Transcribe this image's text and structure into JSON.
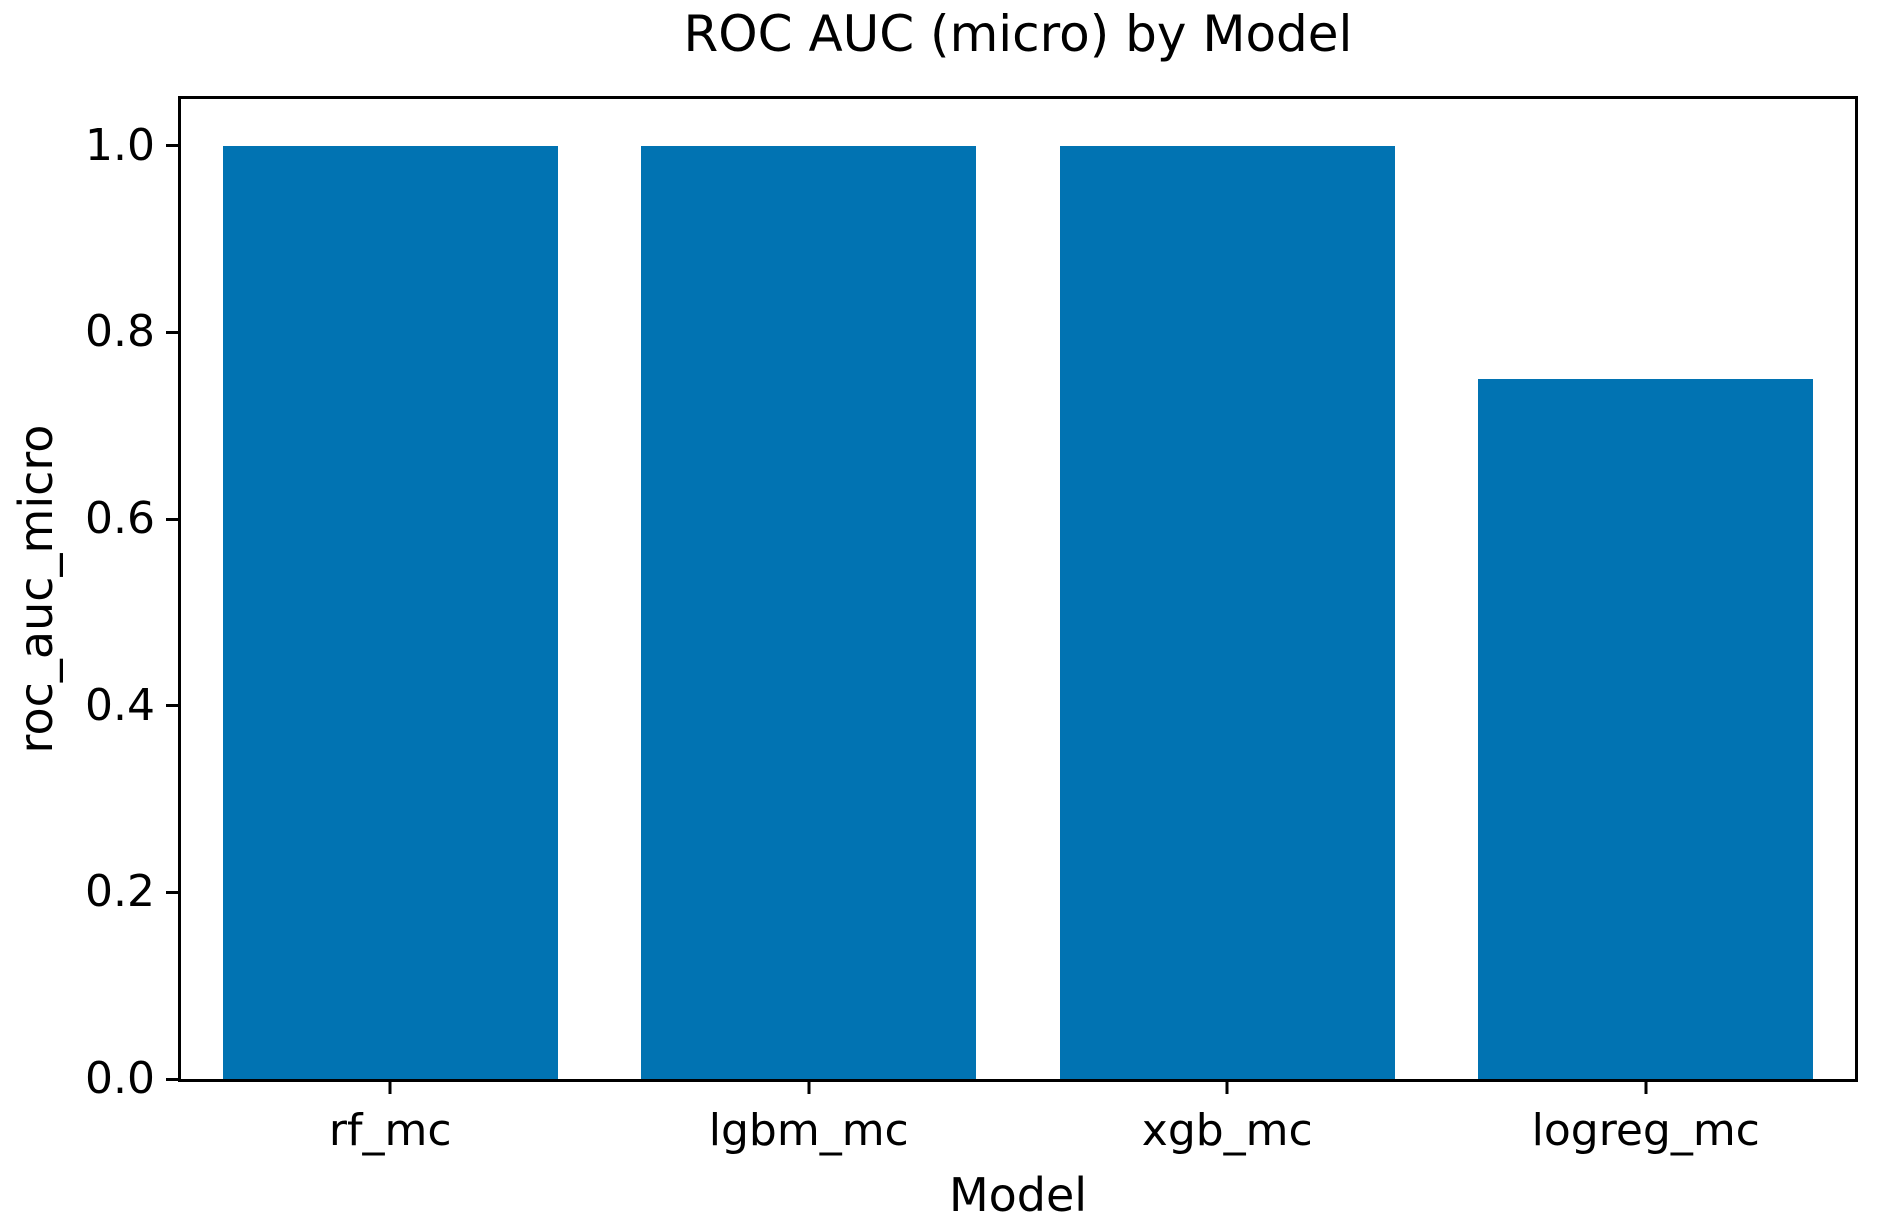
{
  "chart_data": {
    "type": "bar",
    "title": "ROC AUC (micro) by Model",
    "xlabel": "Model",
    "ylabel": "roc_auc_micro",
    "categories": [
      "rf_mc",
      "lgbm_mc",
      "xgb_mc",
      "logreg_mc"
    ],
    "values": [
      1.0,
      1.0,
      1.0,
      0.75
    ],
    "ylim": [
      0,
      1.05
    ],
    "yticks": [
      0.0,
      0.2,
      0.4,
      0.6,
      0.8,
      1.0
    ],
    "ytick_labels": [
      "0.0",
      "0.2",
      "0.4",
      "0.6",
      "0.8",
      "1.0"
    ],
    "bar_width_fraction": 0.8,
    "grid": false,
    "legend_position": "none",
    "colors": {
      "bar": "#0173b2",
      "axis": "#000000",
      "text": "#000000",
      "background": "#ffffff"
    }
  }
}
